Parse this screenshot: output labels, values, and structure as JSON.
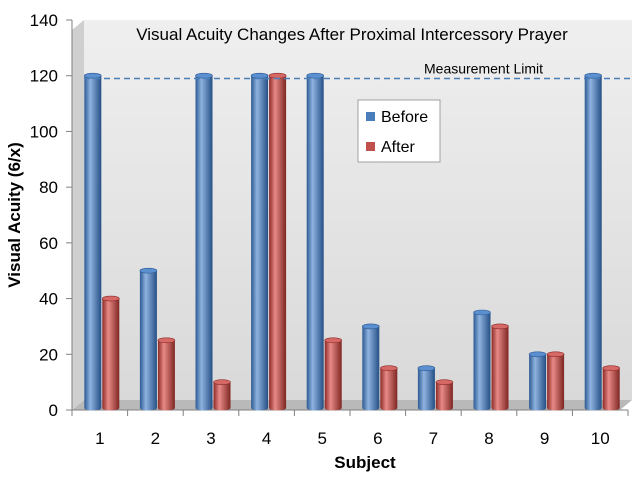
{
  "chart_data": {
    "type": "bar",
    "title": "Visual Acuity Changes After Proximal Intercessory Prayer",
    "xlabel": "Subject",
    "ylabel": "Visual Acuity (6/x)",
    "categories": [
      "1",
      "2",
      "3",
      "4",
      "5",
      "6",
      "7",
      "8",
      "9",
      "10"
    ],
    "series": [
      {
        "name": "Before",
        "color": "#4a7ebb",
        "values": [
          120,
          50,
          120,
          120,
          120,
          30,
          15,
          35,
          20,
          120
        ]
      },
      {
        "name": "After",
        "color": "#c0504d",
        "values": [
          40,
          25,
          10,
          120,
          25,
          15,
          10,
          30,
          20,
          15
        ]
      }
    ],
    "ylim": [
      0,
      140
    ],
    "yticks": [
      "0",
      "20",
      "40",
      "60",
      "80",
      "100",
      "120",
      "140"
    ],
    "reference_line": {
      "label": "Measurement Limit",
      "value": 119,
      "color": "#4a7ebb"
    },
    "legend": "inside-upper-center",
    "grid": false
  }
}
